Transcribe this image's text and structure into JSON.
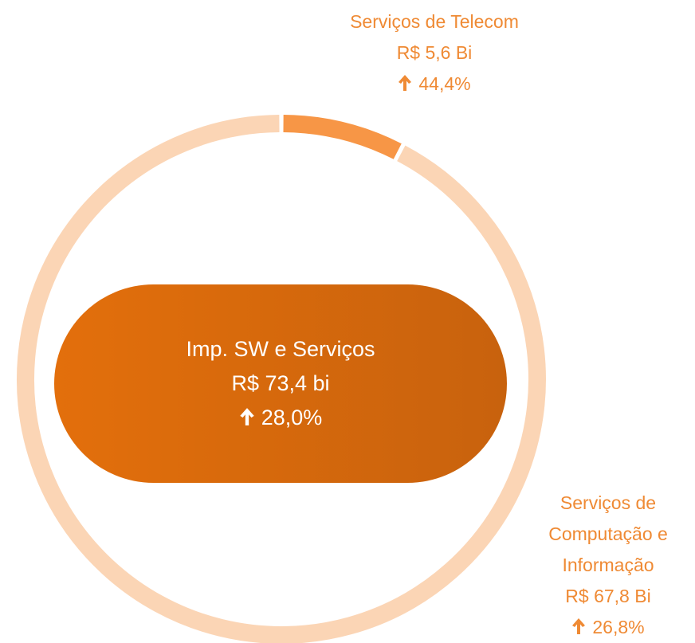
{
  "chart_data": {
    "type": "donut",
    "categories": [
      "Serviços de Telecom",
      "Serviços de Computação e Informação"
    ],
    "values": [
      5.6,
      67.8
    ],
    "value_labels": [
      "R$ 5,6 Bi",
      "R$ 67,8 Bi"
    ],
    "growth_labels": [
      "44,4%",
      "26,8%"
    ],
    "colors": [
      "#f79646",
      "#fbd5b5"
    ],
    "center": {
      "title": "Imp. SW e Serviços",
      "value_label": "R$ 73,4 bi",
      "growth_label": "28,0%"
    }
  }
}
